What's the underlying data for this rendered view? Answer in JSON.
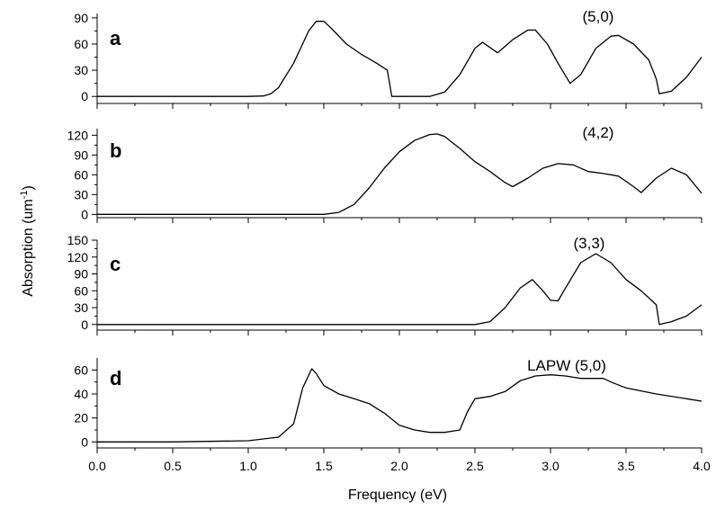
{
  "chart_data": [
    {
      "type": "line",
      "panel_label": "a",
      "annotation": "(5,0)",
      "xlim": [
        0,
        4
      ],
      "ylim": [
        -8,
        95
      ],
      "yticks": [
        0,
        30,
        60,
        90
      ],
      "x": [
        0.0,
        1.0,
        1.1,
        1.15,
        1.2,
        1.3,
        1.4,
        1.45,
        1.5,
        1.55,
        1.65,
        1.75,
        1.85,
        1.92,
        1.95,
        2.05,
        2.2,
        2.3,
        2.4,
        2.5,
        2.55,
        2.65,
        2.75,
        2.85,
        2.9,
        2.98,
        3.05,
        3.13,
        3.2,
        3.3,
        3.4,
        3.45,
        3.55,
        3.65,
        3.7,
        3.72,
        3.8,
        3.9,
        4.0
      ],
      "y": [
        0,
        0,
        0.5,
        3,
        10,
        38,
        75,
        86,
        86,
        78,
        60,
        48,
        38,
        30,
        0,
        0,
        0,
        5,
        25,
        55,
        62,
        50,
        65,
        76,
        76,
        60,
        38,
        15,
        25,
        55,
        69,
        70,
        60,
        42,
        20,
        3,
        6,
        22,
        45
      ]
    },
    {
      "type": "line",
      "panel_label": "b",
      "annotation": "(4,2)",
      "xlim": [
        0,
        4
      ],
      "ylim": [
        -5,
        130
      ],
      "yticks": [
        0,
        30,
        60,
        90,
        120
      ],
      "x": [
        0.0,
        1.5,
        1.6,
        1.7,
        1.8,
        1.9,
        2.0,
        2.1,
        2.2,
        2.25,
        2.3,
        2.4,
        2.5,
        2.6,
        2.7,
        2.75,
        2.85,
        2.95,
        3.05,
        3.15,
        3.25,
        3.35,
        3.45,
        3.55,
        3.6,
        3.7,
        3.8,
        3.9,
        4.0
      ],
      "y": [
        0,
        0,
        3,
        15,
        40,
        70,
        95,
        112,
        121,
        122,
        118,
        100,
        80,
        65,
        48,
        42,
        55,
        70,
        77,
        75,
        65,
        62,
        58,
        42,
        33,
        55,
        70,
        60,
        32
      ]
    },
    {
      "type": "line",
      "panel_label": "c",
      "annotation": "(3,3)",
      "xlim": [
        0,
        4
      ],
      "ylim": [
        -10,
        150
      ],
      "yticks": [
        0,
        30,
        60,
        90,
        120,
        150
      ],
      "x": [
        0.0,
        2.5,
        2.6,
        2.7,
        2.8,
        2.88,
        2.95,
        3.0,
        3.05,
        3.1,
        3.2,
        3.3,
        3.4,
        3.5,
        3.6,
        3.7,
        3.72,
        3.8,
        3.9,
        4.0
      ],
      "y": [
        0,
        0,
        5,
        30,
        65,
        80,
        60,
        43,
        42,
        65,
        110,
        126,
        110,
        80,
        60,
        35,
        0,
        5,
        15,
        35
      ]
    },
    {
      "type": "line",
      "panel_label": "d",
      "annotation": "LAPW (5,0)",
      "xlim": [
        0,
        4
      ],
      "ylim": [
        -5,
        70
      ],
      "yticks": [
        0,
        20,
        40,
        60
      ],
      "xticks": [
        0.0,
        0.5,
        1.0,
        1.5,
        2.0,
        2.5,
        3.0,
        3.5,
        4.0
      ],
      "xticklabels": [
        "0.0",
        "0.5",
        "1.0",
        "1.5",
        "2.0",
        "2.5",
        "3.0",
        "3.5",
        "4.0"
      ],
      "x": [
        0.0,
        0.5,
        1.0,
        1.2,
        1.3,
        1.36,
        1.42,
        1.45,
        1.5,
        1.6,
        1.7,
        1.8,
        1.9,
        2.0,
        2.1,
        2.2,
        2.3,
        2.4,
        2.45,
        2.5,
        2.6,
        2.7,
        2.8,
        2.9,
        3.0,
        3.1,
        3.2,
        3.3,
        3.35,
        3.4,
        3.5,
        3.7,
        3.9,
        4.0
      ],
      "y": [
        0,
        0,
        1,
        4,
        15,
        45,
        61,
        57,
        47,
        40,
        36,
        32,
        24,
        14,
        10,
        8,
        8,
        10,
        25,
        36,
        38,
        42,
        51,
        55,
        56,
        55,
        53,
        53,
        53,
        50,
        45,
        40,
        36,
        34
      ]
    }
  ],
  "xlabel": "Frequency (eV)",
  "ylabel": "Absorption (um",
  "ylabel_sup": "-1",
  "ylabel_close": ")"
}
